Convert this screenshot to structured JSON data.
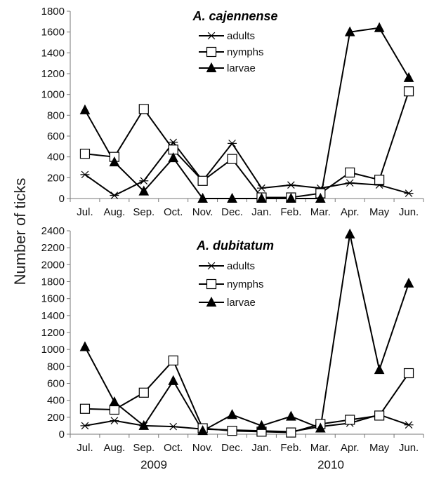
{
  "figure": {
    "ylabel": "Number of ticks",
    "year_labels": [
      "2009",
      "2010"
    ]
  },
  "chart_data": [
    {
      "type": "line",
      "title": "A. cajennense",
      "categories": [
        "Jul.",
        "Aug.",
        "Sep.",
        "Oct.",
        "Nov.",
        "Dec.",
        "Jan.",
        "Feb.",
        "Mar.",
        "Apr.",
        "May",
        "Jun."
      ],
      "ylim": [
        0,
        1800
      ],
      "yticks": [
        0,
        200,
        400,
        600,
        800,
        1000,
        1200,
        1400,
        1600,
        1800
      ],
      "grid": false,
      "legend": "top-center",
      "series": [
        {
          "name": "adults",
          "marker": "asterisk",
          "values": [
            230,
            30,
            170,
            540,
            170,
            530,
            100,
            130,
            100,
            150,
            130,
            50
          ]
        },
        {
          "name": "nymphs",
          "marker": "square",
          "values": [
            430,
            400,
            860,
            470,
            170,
            380,
            10,
            10,
            50,
            250,
            180,
            1030
          ]
        },
        {
          "name": "larvae",
          "marker": "triangle",
          "values": [
            850,
            350,
            70,
            390,
            0,
            0,
            0,
            0,
            0,
            1600,
            1640,
            1160
          ]
        }
      ]
    },
    {
      "type": "line",
      "title": "A. dubitatum",
      "categories": [
        "Jul.",
        "Aug.",
        "Sep.",
        "Oct.",
        "Nov.",
        "Dec.",
        "Jan.",
        "Feb.",
        "Mar.",
        "Apr.",
        "May",
        "Jun."
      ],
      "ylim": [
        0,
        2400
      ],
      "yticks": [
        0,
        200,
        400,
        600,
        800,
        1000,
        1200,
        1400,
        1600,
        1800,
        2000,
        2200,
        2400
      ],
      "grid": false,
      "legend": "top-center",
      "series": [
        {
          "name": "adults",
          "marker": "asterisk",
          "values": [
            100,
            160,
            100,
            90,
            60,
            50,
            40,
            30,
            90,
            130,
            230,
            110
          ]
        },
        {
          "name": "nymphs",
          "marker": "square",
          "values": [
            300,
            290,
            490,
            870,
            70,
            40,
            30,
            20,
            120,
            170,
            220,
            720
          ]
        },
        {
          "name": "larvae",
          "marker": "triangle",
          "values": [
            1030,
            380,
            100,
            630,
            40,
            230,
            100,
            210,
            70,
            2360,
            760,
            1780
          ]
        }
      ]
    }
  ]
}
